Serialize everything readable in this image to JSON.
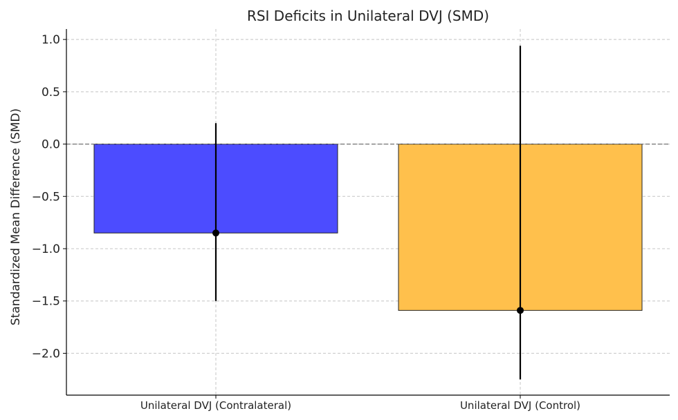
{
  "chart_data": {
    "type": "bar",
    "title": "RSI Deficits in Unilateral DVJ (SMD)",
    "xlabel": "",
    "ylabel": "Standardized Mean Difference (SMD)",
    "categories": [
      "Unilateral DVJ (Contralateral)",
      "Unilateral DVJ (Control)"
    ],
    "values": [
      -0.85,
      -1.59
    ],
    "error_low": [
      -1.5,
      -2.25
    ],
    "error_high": [
      0.2,
      0.94
    ],
    "colors": [
      "#4c4cff",
      "#ffc04c"
    ],
    "ylim": [
      -2.4,
      1.1
    ],
    "yticks": [
      1.0,
      0.5,
      0.0,
      -0.5,
      -1.0,
      -1.5,
      -2.0
    ],
    "ytick_labels": [
      "1.0",
      "0.5",
      "0.0",
      "−0.5",
      "−1.0",
      "−1.5",
      "−2.0"
    ],
    "grid": true,
    "reference_line": 0
  }
}
